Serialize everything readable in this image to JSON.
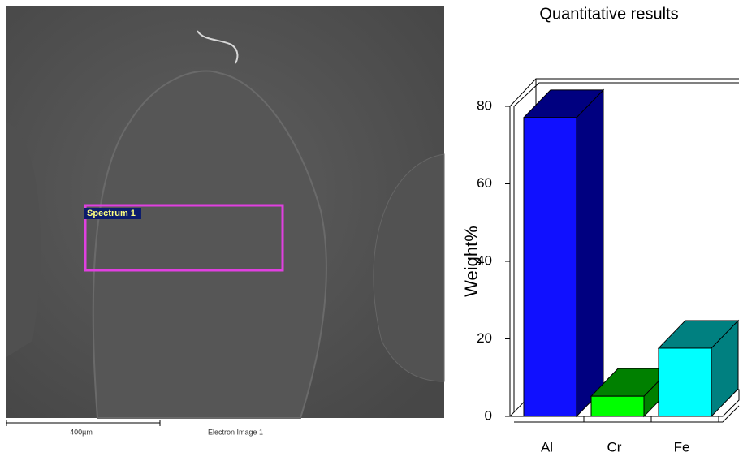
{
  "image": {
    "spectrum_label": "Spectrum 1",
    "scale_bar": "400µm",
    "caption": "Electron Image 1"
  },
  "chart_data": {
    "type": "bar3d",
    "title": "Quantitative results",
    "ylabel": "Weight%",
    "categories": [
      "Al",
      "Cr",
      "Fe"
    ],
    "values": [
      77.1,
      5.2,
      17.6
    ],
    "colors": [
      "#1010ff",
      "#00ff00",
      "#00ffff"
    ],
    "shade_colors": [
      "#000080",
      "#008000",
      "#008080"
    ],
    "ylim": [
      0,
      80
    ],
    "yticks": [
      0,
      20,
      40,
      60,
      80
    ],
    "grid": false
  }
}
